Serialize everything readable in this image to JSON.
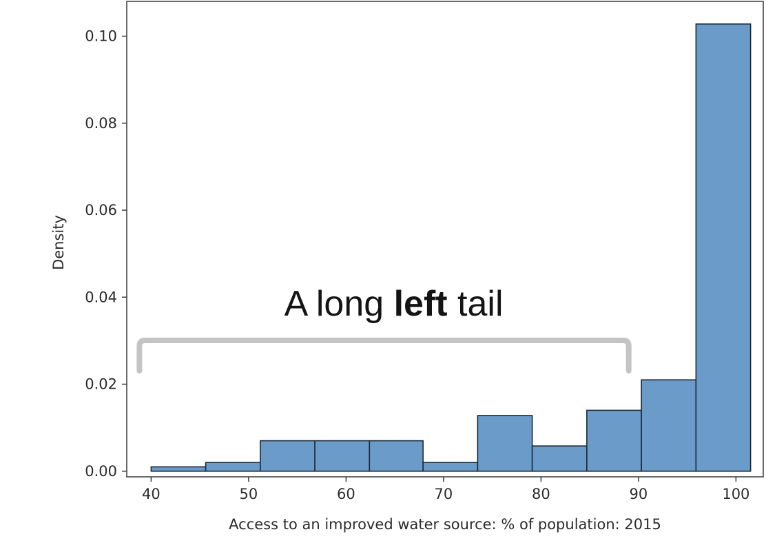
{
  "chart_data": {
    "type": "bar",
    "title": "",
    "xlabel": "Access to an improved water source: % of population: 2015",
    "ylabel": "Density",
    "xlim": [
      37.5,
      102.8
    ],
    "ylim": [
      -0.0013,
      0.108
    ],
    "x_ticks": [
      40,
      50,
      60,
      70,
      80,
      90,
      100
    ],
    "x_tick_labels": [
      "40",
      "50",
      "60",
      "70",
      "80",
      "90",
      "100"
    ],
    "y_ticks": [
      0,
      0.02,
      0.04,
      0.06,
      0.08,
      0.1
    ],
    "y_tick_labels": [
      "0.00",
      "0.02",
      "0.04",
      "0.06",
      "0.08",
      "0.10"
    ],
    "bin_edges": [
      40.0,
      45.6,
      51.2,
      56.8,
      62.4,
      67.9,
      73.5,
      79.1,
      84.7,
      90.3,
      95.9,
      101.5
    ],
    "values": [
      0.001,
      0.002,
      0.007,
      0.007,
      0.007,
      0.002,
      0.0128,
      0.0058,
      0.014,
      0.021,
      0.1028
    ],
    "bar_color": "#6b9bc8",
    "bar_edge_color": "#1a2a38",
    "grid": false,
    "legend": "none",
    "annotation": {
      "text_before": "A long ",
      "text_bold": "left",
      "text_after": " tail",
      "bracket_from_x": 38.8,
      "bracket_to_x": 89.0,
      "bracket_color": "#c4c4c4"
    }
  }
}
